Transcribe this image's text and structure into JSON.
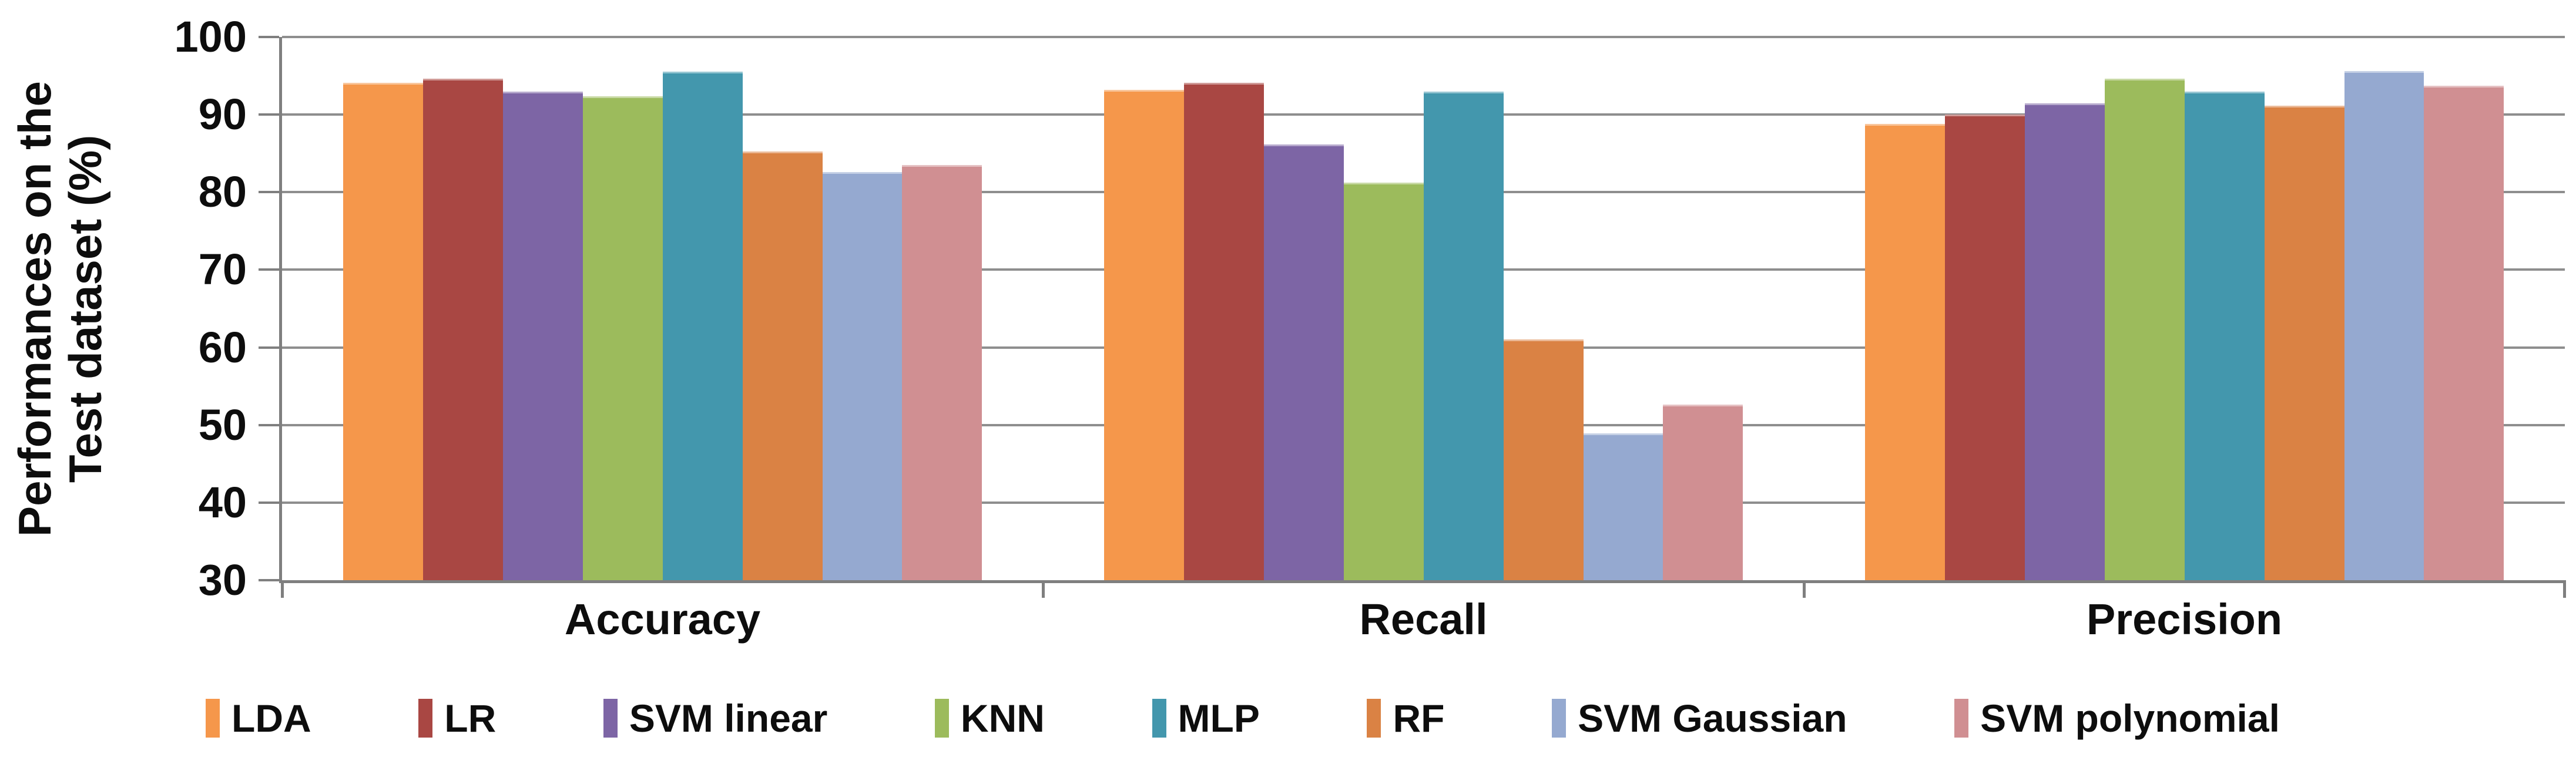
{
  "chart_data": {
    "type": "bar",
    "title": "",
    "ylabel": "Performances on the Test dataset (%)",
    "ylabel_lines": [
      "Performances on the",
      "Test dataset (%)"
    ],
    "categories": [
      "Accuracy",
      "Recall",
      "Precision"
    ],
    "series": [
      {
        "name": "LDA",
        "color": "#F5974B",
        "values": [
          93.9,
          93.0,
          88.6
        ]
      },
      {
        "name": "LR",
        "color": "#A94743",
        "values": [
          94.4,
          93.9,
          89.8
        ]
      },
      {
        "name": "SVM linear",
        "color": "#7D65A5",
        "values": [
          92.7,
          85.9,
          91.2
        ]
      },
      {
        "name": "KNN",
        "color": "#9CBB5C",
        "values": [
          92.1,
          81.0,
          94.4
        ]
      },
      {
        "name": "MLP",
        "color": "#4397AD",
        "values": [
          95.3,
          92.7,
          92.7
        ]
      },
      {
        "name": "RF",
        "color": "#DA8244",
        "values": [
          85.0,
          60.8,
          90.9
        ]
      },
      {
        "name": "SVM Gaussian",
        "color": "#95A9D0",
        "values": [
          82.4,
          48.7,
          95.4
        ]
      },
      {
        "name": "SVM polynomial",
        "color": "#D08F92",
        "values": [
          83.3,
          52.4,
          93.5
        ]
      }
    ],
    "ylim": [
      30,
      100
    ],
    "yticks": [
      30,
      40,
      50,
      60,
      70,
      80,
      90,
      100
    ],
    "grid": true,
    "legend_position": "bottom",
    "axis_color": "#7f7f7f",
    "grid_color": "#8e8e8e"
  }
}
